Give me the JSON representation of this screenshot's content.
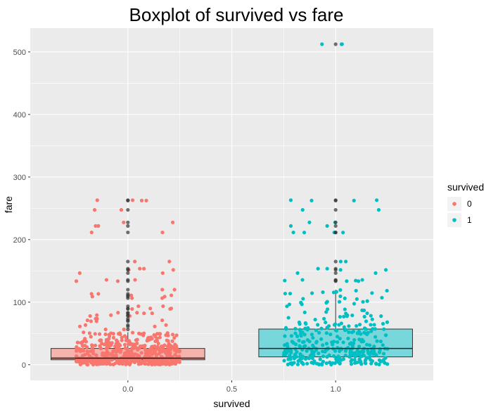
{
  "chart_data": {
    "type": "boxplot",
    "title": "Boxplot of survived vs fare",
    "xlabel": "survived",
    "ylabel": "fare",
    "xlim": [
      -0.47,
      1.47
    ],
    "ylim": [
      -25,
      538
    ],
    "x_ticks": [
      0.0,
      0.5,
      1.0
    ],
    "x_tick_labels": [
      "0.0",
      "0.5",
      "1.0"
    ],
    "y_ticks": [
      0,
      100,
      200,
      300,
      400,
      500
    ],
    "y_tick_labels": [
      "0",
      "100",
      "200",
      "300",
      "400",
      "500"
    ],
    "grid": true,
    "panel_background": "#ebebeb",
    "grid_color": "#ffffff",
    "legend": {
      "title": "survived",
      "position": "right",
      "entries": [
        {
          "label": "0",
          "color": "#f8766d"
        },
        {
          "label": "1",
          "color": "#00bfc4"
        }
      ]
    },
    "series": [
      {
        "name": "0",
        "x": 0,
        "color": "#f8766d",
        "box_fill": "#f4b3ad",
        "whisker_low": 0,
        "q1": 7.9,
        "median": 10.5,
        "q3": 26,
        "whisker_high": 52,
        "box_x_range": [
          -0.37,
          0.37
        ],
        "n_jitter_points": 550,
        "jitter_width": 0.25,
        "outliers": [
          56.5,
          61.2,
          63.4,
          69.5,
          71,
          73.5,
          77.9,
          79.2,
          82.2,
          83.2,
          89.1,
          90,
          93.5,
          106.4,
          108.9,
          110.9,
          113.3,
          120,
          133.6,
          135.6,
          146.5,
          151.6,
          153.5,
          164.9,
          211.5,
          221.8,
          227.5,
          247.5,
          262.4,
          263
        ]
      },
      {
        "name": "1",
        "x": 1,
        "color": "#00bfc4",
        "box_fill": "#77d7da",
        "whisker_low": 0,
        "q1": 12.5,
        "median": 26,
        "q3": 57,
        "whisker_high": 120,
        "box_x_range": [
          0.63,
          1.37
        ],
        "n_jitter_points": 340,
        "jitter_width": 0.25,
        "outliers": [
          133.6,
          134.5,
          135.6,
          146.5,
          151.6,
          153.5,
          164.9,
          211.3,
          211.5,
          221.8,
          227.5,
          247.5,
          262.4,
          263,
          512.3
        ]
      }
    ]
  }
}
